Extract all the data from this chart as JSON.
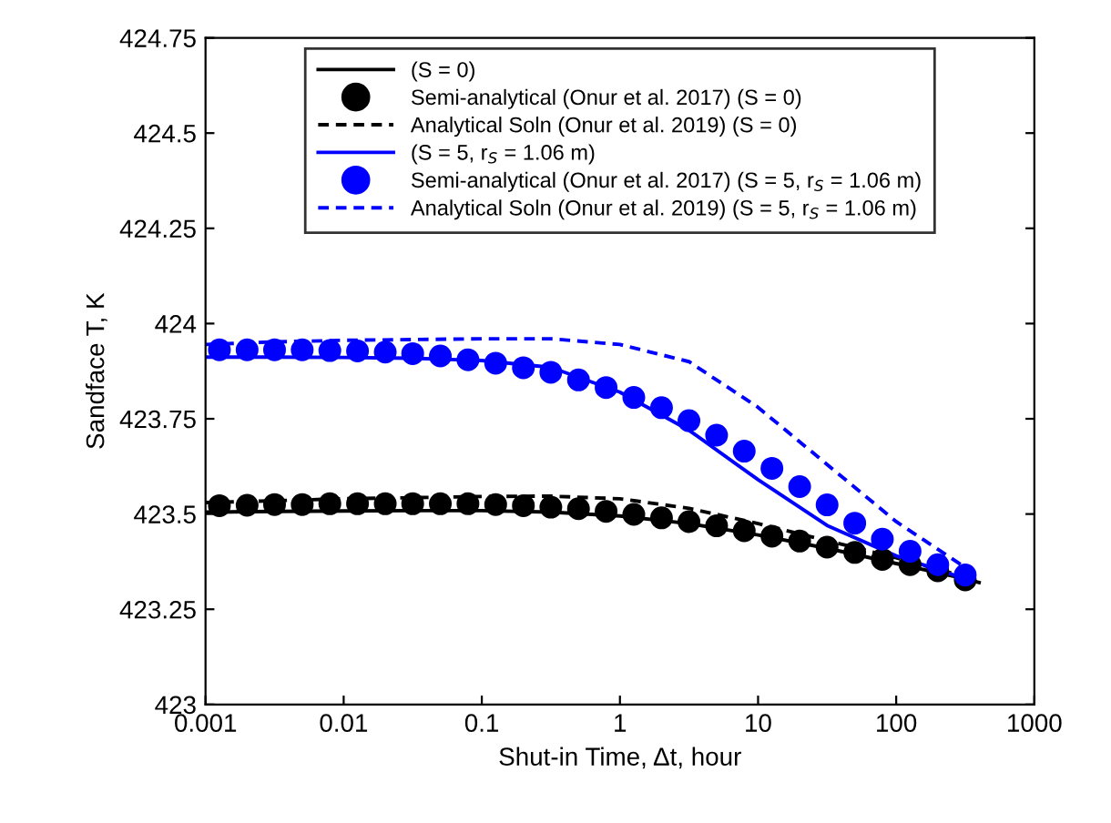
{
  "chart_data": {
    "type": "line",
    "xlabel": "Shut-in Time, Δt, hour",
    "ylabel": "Sandface T, K",
    "log": "x",
    "xlim": [
      0.001,
      1000
    ],
    "xticks": [
      0.001,
      0.01,
      0.1,
      1,
      10,
      100,
      1000
    ],
    "ylim": [
      423,
      424.75
    ],
    "yticks": [
      423,
      423.25,
      423.5,
      423.75,
      424,
      424.25,
      424.5,
      424.75
    ],
    "grid": false,
    "legend": "top",
    "series": [
      {
        "name": "(S = 0)",
        "color": "#000000",
        "line_style": "solid",
        "x": [
          0.001,
          0.00316,
          0.01,
          0.0316,
          0.1,
          0.316,
          1,
          3.16,
          10,
          31.6,
          100,
          316,
          398
        ],
        "values": [
          423.505,
          423.507,
          423.508,
          423.509,
          423.509,
          423.505,
          423.495,
          423.475,
          423.445,
          423.41,
          423.37,
          423.33,
          423.32
        ]
      },
      {
        "name": "Semi-analytical (Onur et al. 2017) (S = 0)",
        "type": "scatter",
        "marker": "circle",
        "color": "#000000",
        "x": [
          0.00126,
          0.002,
          0.00316,
          0.00501,
          0.00794,
          0.0126,
          0.02,
          0.0316,
          0.0501,
          0.0794,
          0.126,
          0.2,
          0.316,
          0.501,
          0.794,
          1.26,
          2,
          3.16,
          5.01,
          7.94,
          12.6,
          20,
          31.6,
          50.1,
          79.4,
          126,
          200,
          316
        ],
        "values": [
          423.522,
          423.523,
          423.525,
          423.525,
          423.527,
          423.527,
          423.527,
          423.527,
          423.527,
          423.527,
          423.525,
          423.522,
          423.518,
          423.514,
          423.507,
          423.499,
          423.49,
          423.48,
          423.469,
          423.456,
          423.442,
          423.429,
          423.413,
          423.399,
          423.381,
          423.367,
          423.351,
          423.327
        ]
      },
      {
        "name": "Analytical Soln (Onur et al. 2019) (S = 0)",
        "color": "#000000",
        "line_style": "dashed",
        "x": [
          0.001,
          0.00316,
          0.01,
          0.0316,
          0.1,
          0.316,
          1,
          3.16,
          10,
          31.6,
          100,
          316
        ],
        "values": [
          423.53,
          423.535,
          423.54,
          423.543,
          423.546,
          423.547,
          423.54,
          423.515,
          423.475,
          423.43,
          423.385,
          423.335
        ]
      },
      {
        "name": "(S = 5, r$_{S}$ = 1.06 m)",
        "color": "#0000ff",
        "line_style": "solid",
        "x": [
          0.001,
          0.00316,
          0.01,
          0.0316,
          0.1,
          0.316,
          1,
          3.16,
          10,
          31.6,
          100,
          316
        ],
        "values": [
          423.912,
          423.912,
          423.911,
          423.909,
          423.903,
          423.885,
          423.82,
          423.72,
          423.59,
          423.47,
          423.39,
          423.33
        ]
      },
      {
        "name": "Semi-analytical (Onur et al. 2017) (S = 5, r$_{S}$ = 1.06 m)",
        "type": "scatter",
        "marker": "circle",
        "color": "#0000ff",
        "x": [
          0.00126,
          0.002,
          0.00316,
          0.00501,
          0.00794,
          0.0126,
          0.02,
          0.0316,
          0.0501,
          0.0794,
          0.126,
          0.2,
          0.316,
          0.501,
          0.794,
          1.26,
          2,
          3.16,
          5.01,
          7.94,
          12.6,
          20,
          31.6,
          50.1,
          79.4,
          126,
          200,
          316
        ],
        "values": [
          423.931,
          423.931,
          423.931,
          423.931,
          423.929,
          423.928,
          423.925,
          423.921,
          423.915,
          423.905,
          423.896,
          423.884,
          423.872,
          423.852,
          423.832,
          423.806,
          423.779,
          423.745,
          423.707,
          423.665,
          423.62,
          423.572,
          423.524,
          423.476,
          423.434,
          423.402,
          423.367,
          423.34
        ]
      },
      {
        "name": "Analytical Soln (Onur et al. 2019) (S = 5, r$_{S}$ = 1.06 m)",
        "color": "#0000ff",
        "line_style": "dashed",
        "x": [
          0.001,
          0.00316,
          0.01,
          0.0316,
          0.1,
          0.316,
          1,
          3.16,
          10,
          31.6,
          100,
          316,
          398
        ],
        "values": [
          423.945,
          423.952,
          423.956,
          423.958,
          423.96,
          423.96,
          423.945,
          423.9,
          423.78,
          423.63,
          423.48,
          423.36,
          423.335
        ]
      }
    ]
  }
}
